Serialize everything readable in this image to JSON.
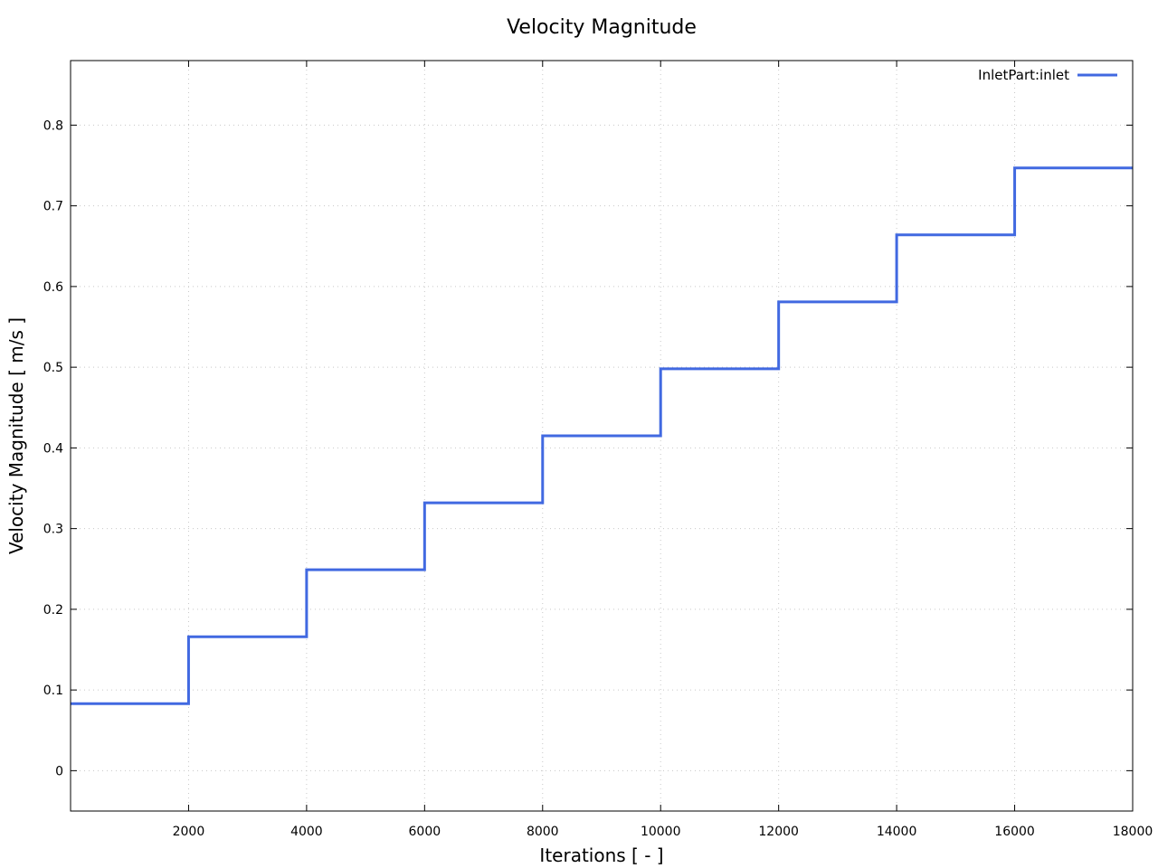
{
  "chart_data": {
    "type": "line",
    "title": "Velocity Magnitude",
    "xlabel": "Iterations [ - ]",
    "ylabel": "Velocity Magnitude [ m/s ]",
    "xlim": [
      0,
      18000
    ],
    "ylim": [
      -0.05,
      0.88
    ],
    "xticks": [
      2000,
      4000,
      6000,
      8000,
      10000,
      12000,
      14000,
      16000,
      18000
    ],
    "xtick_labels": [
      "2000",
      "4000",
      "6000",
      "8000",
      "10000",
      "12000",
      "14000",
      "16000",
      "18000"
    ],
    "yticks": [
      0,
      0.1,
      0.2,
      0.3,
      0.4,
      0.5,
      0.6,
      0.7,
      0.8
    ],
    "ytick_labels": [
      "0",
      "0.1",
      "0.2",
      "0.3",
      "0.4",
      "0.5",
      "0.6",
      "0.7",
      "0.8"
    ],
    "grid": true,
    "legend_position": "top-right",
    "series": [
      {
        "name": "InletPart:inlet",
        "color": "#4169e1",
        "step": true,
        "x": [
          0,
          2000,
          4000,
          6000,
          8000,
          10000,
          12000,
          14000,
          16000,
          18000
        ],
        "y": [
          0.083,
          0.166,
          0.249,
          0.332,
          0.415,
          0.498,
          0.581,
          0.664,
          0.747,
          0.747
        ]
      }
    ]
  }
}
